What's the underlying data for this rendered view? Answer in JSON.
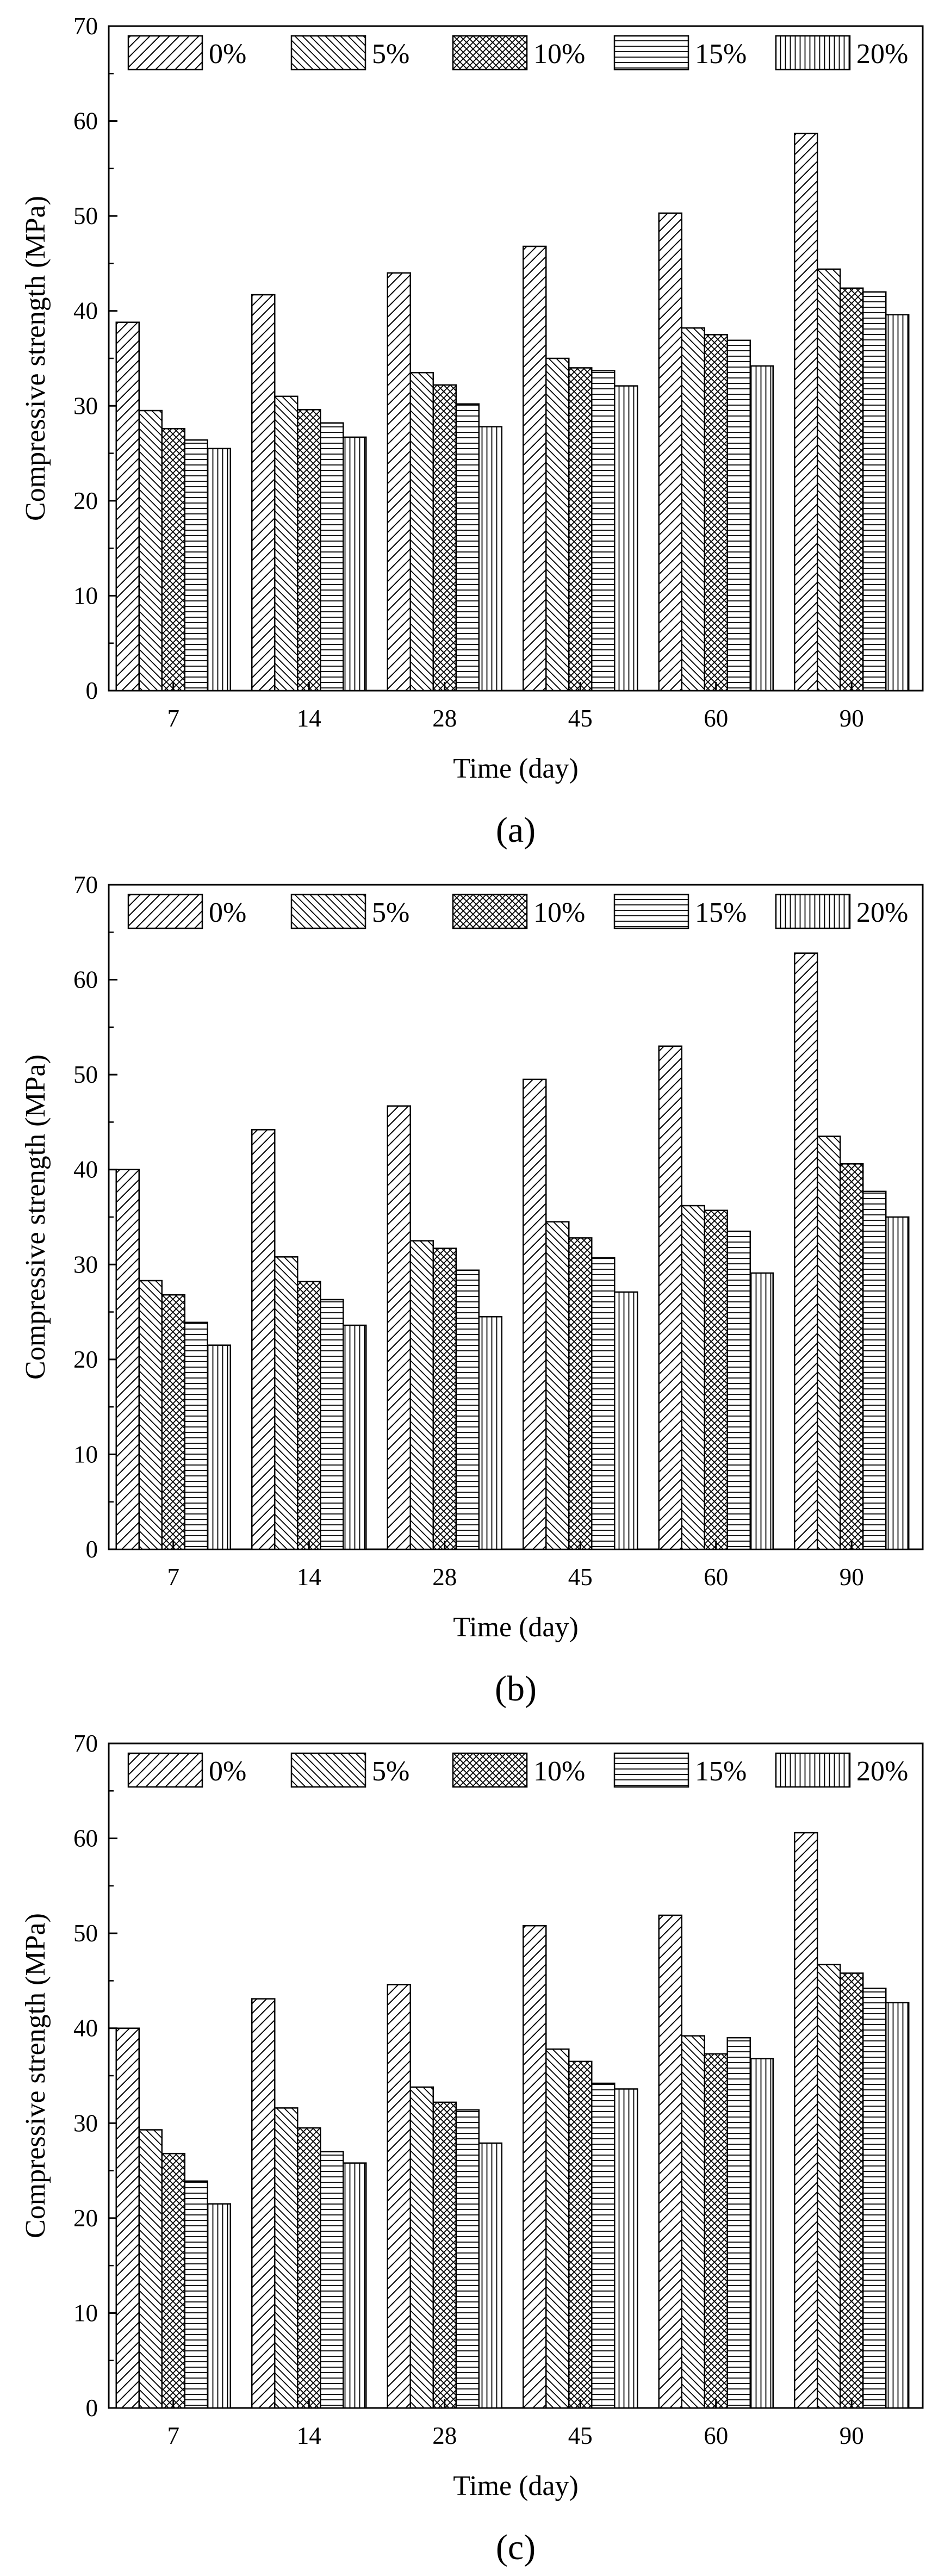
{
  "figure": {
    "panel_labels": [
      "(a)",
      "(b)",
      "(c)"
    ]
  },
  "chart_data": [
    {
      "type": "bar",
      "panel": "(a)",
      "categories": [
        "7",
        "14",
        "28",
        "45",
        "60",
        "90"
      ],
      "series": [
        {
          "name": "0%",
          "pattern": "diag-forward",
          "values": [
            38.8,
            41.7,
            44.0,
            46.8,
            50.3,
            58.7
          ]
        },
        {
          "name": "5%",
          "pattern": "diag-backward",
          "values": [
            29.5,
            31.0,
            33.5,
            35.0,
            38.2,
            44.4
          ]
        },
        {
          "name": "10%",
          "pattern": "crosshatch",
          "values": [
            27.6,
            29.6,
            32.2,
            34.0,
            37.5,
            42.4
          ]
        },
        {
          "name": "15%",
          "pattern": "horizontal",
          "values": [
            26.4,
            28.2,
            30.2,
            33.7,
            36.9,
            42.0
          ]
        },
        {
          "name": "20%",
          "pattern": "vertical",
          "values": [
            25.5,
            26.7,
            27.8,
            32.1,
            34.2,
            39.6
          ]
        }
      ],
      "xlabel": "Time (day)",
      "ylabel": "Compressive strength (MPa)",
      "ylim": [
        0,
        70
      ],
      "yticks": [
        0,
        10,
        20,
        30,
        40,
        50,
        60,
        70
      ],
      "grid": false,
      "legend": "top, single row"
    },
    {
      "type": "bar",
      "panel": "(b)",
      "categories": [
        "7",
        "14",
        "28",
        "45",
        "60",
        "90"
      ],
      "series": [
        {
          "name": "0%",
          "pattern": "diag-forward",
          "values": [
            40.0,
            44.2,
            46.7,
            49.5,
            53.0,
            62.8
          ]
        },
        {
          "name": "5%",
          "pattern": "diag-backward",
          "values": [
            28.3,
            30.8,
            32.5,
            34.5,
            36.2,
            43.5
          ]
        },
        {
          "name": "10%",
          "pattern": "crosshatch",
          "values": [
            26.8,
            28.2,
            31.7,
            32.8,
            35.7,
            40.6
          ]
        },
        {
          "name": "15%",
          "pattern": "horizontal",
          "values": [
            23.9,
            26.3,
            29.4,
            30.7,
            33.5,
            37.7
          ]
        },
        {
          "name": "20%",
          "pattern": "vertical",
          "values": [
            21.5,
            23.6,
            24.5,
            27.1,
            29.1,
            35.0
          ]
        }
      ],
      "xlabel": "Time (day)",
      "ylabel": "Compressive strength (MPa)",
      "ylim": [
        0,
        70
      ],
      "yticks": [
        0,
        10,
        20,
        30,
        40,
        50,
        60,
        70
      ],
      "grid": false,
      "legend": "top, single row"
    },
    {
      "type": "bar",
      "panel": "(c)",
      "categories": [
        "7",
        "14",
        "28",
        "45",
        "60",
        "90"
      ],
      "series": [
        {
          "name": "0%",
          "pattern": "diag-forward",
          "values": [
            40.0,
            43.1,
            44.6,
            50.8,
            51.9,
            60.6
          ]
        },
        {
          "name": "5%",
          "pattern": "diag-backward",
          "values": [
            29.3,
            31.6,
            33.8,
            37.8,
            39.2,
            46.7
          ]
        },
        {
          "name": "10%",
          "pattern": "crosshatch",
          "values": [
            26.8,
            29.5,
            32.2,
            36.5,
            37.3,
            45.8
          ]
        },
        {
          "name": "15%",
          "pattern": "horizontal",
          "values": [
            23.9,
            27.0,
            31.4,
            34.2,
            39.0,
            44.2
          ]
        },
        {
          "name": "20%",
          "pattern": "vertical",
          "values": [
            21.5,
            25.8,
            27.9,
            33.6,
            36.8,
            42.7
          ]
        }
      ],
      "xlabel": "Time (day)",
      "ylabel": "Compressive strength (MPa)",
      "ylim": [
        0,
        70
      ],
      "yticks": [
        0,
        10,
        20,
        30,
        40,
        50,
        60,
        70
      ],
      "grid": false,
      "legend": "top, single row"
    }
  ]
}
